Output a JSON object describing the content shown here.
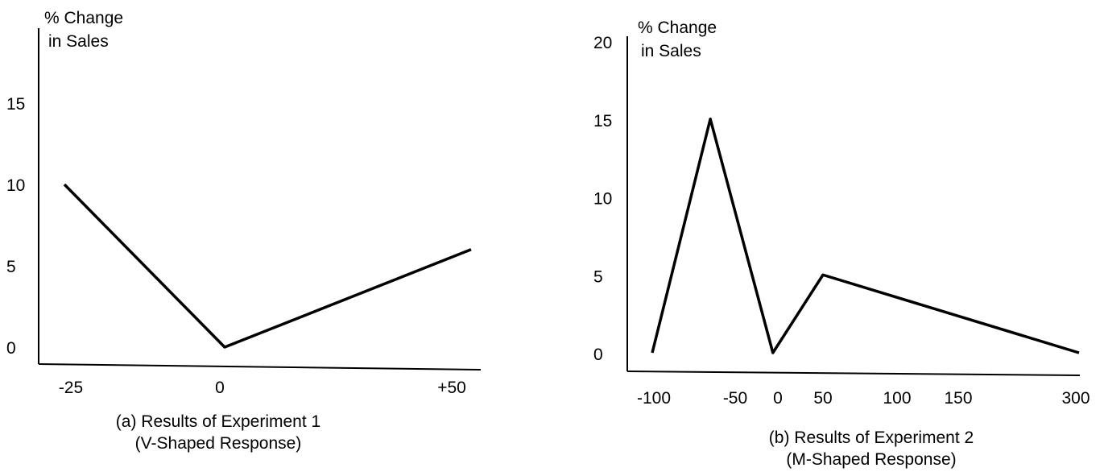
{
  "chart_data": [
    {
      "type": "line",
      "title": "(a) Results of Experiment 1",
      "subtitle": "(V-Shaped Response)",
      "ylabel": [
        "% Change",
        "in Sales"
      ],
      "xlabel": "",
      "x_tick_labels": [
        "-25",
        "0",
        "+50"
      ],
      "y_tick_labels": [
        "0",
        "5",
        "10",
        "15"
      ],
      "series": [
        {
          "x": [
            "-25",
            "0",
            "+50"
          ],
          "values": [
            10,
            0,
            6
          ]
        }
      ],
      "ylim": [
        0,
        20
      ],
      "grid": false,
      "line_color": "#000000"
    },
    {
      "type": "line",
      "title": "(b) Results of Experiment 2",
      "subtitle": "(M-Shaped Response)",
      "ylabel": [
        "% Change",
        "in Sales"
      ],
      "xlabel": "",
      "x_tick_labels": [
        "-100",
        "-50",
        "0",
        "50",
        "100",
        "150",
        "300"
      ],
      "y_tick_labels": [
        "0",
        "5",
        "10",
        "15",
        "20"
      ],
      "series": [
        {
          "x": [
            -100,
            -65,
            -5,
            50,
            300
          ],
          "values": [
            0,
            15,
            0,
            5,
            0
          ]
        }
      ],
      "ylim": [
        0,
        20
      ],
      "grid": false,
      "line_color": "#000000"
    }
  ]
}
